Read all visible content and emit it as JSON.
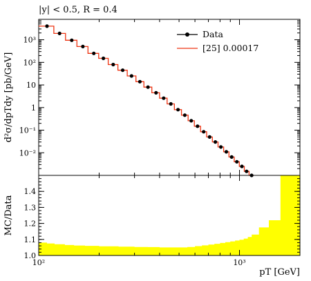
{
  "chart_data": [
    {
      "type": "line",
      "title": "|y| < 0.5, R = 0.4",
      "xlabel": "pT [GeV]",
      "ylabel": "d²σ/dpTdy [pb/GeV]",
      "xscale": "log",
      "yscale": "log",
      "xlim": [
        100,
        2000
      ],
      "ylim": [
        0.001,
        8000
      ],
      "legend": {
        "position": "top-right"
      },
      "x_tick_labels": [
        "10²",
        "10³"
      ],
      "y_tick_labels": [
        "10⁻²",
        "10⁻¹",
        "1",
        "10",
        "10²",
        "10³"
      ],
      "series": [
        {
          "name": "Data",
          "style": "markers",
          "color": "#000000",
          "x": [
            110,
            127,
            146,
            166,
            188,
            210,
            235,
            262,
            290,
            319,
            350,
            384,
            419,
            455,
            494,
            534,
            575,
            618,
            663,
            710,
            758,
            808,
            860,
            914,
            970,
            1028,
            1085,
            1149
          ],
          "y": [
            4000,
            1900,
            950,
            500,
            250,
            150,
            80,
            45,
            25,
            14,
            8,
            4.5,
            2.6,
            1.45,
            0.81,
            0.46,
            0.26,
            0.15,
            0.085,
            0.05,
            0.03,
            0.018,
            0.011,
            0.0065,
            0.004,
            0.0025,
            0.0015,
            0.001
          ]
        },
        {
          "name": "[25] 0.00017",
          "style": "step",
          "color": "#ee3311",
          "bin_edges": [
            100,
            119,
            136,
            155,
            176,
            199,
            222,
            248,
            276,
            305,
            334,
            366,
            400,
            436,
            474,
            514,
            555,
            596,
            640,
            686,
            733,
            782,
            834,
            886,
            941,
            998,
            1057,
            1116,
            1180
          ],
          "values": [
            4000,
            1900,
            950,
            500,
            250,
            150,
            80,
            45,
            25,
            14,
            8,
            4.5,
            2.6,
            1.45,
            0.81,
            0.46,
            0.26,
            0.15,
            0.085,
            0.05,
            0.03,
            0.018,
            0.011,
            0.0065,
            0.004,
            0.0025,
            0.0015,
            0.001
          ]
        }
      ]
    },
    {
      "type": "area",
      "xlabel": "pT [GeV]",
      "ylabel": "MC/Data",
      "xscale": "log",
      "xlim": [
        100,
        2000
      ],
      "ylim": [
        1.0,
        1.5
      ],
      "x_tick_labels": [
        "10²",
        "10³",
        "pT [GeV]"
      ],
      "y_tick_labels": [
        "1.0",
        "1.1",
        "1.2",
        "1.3",
        "1.4"
      ],
      "series": [
        {
          "name": "",
          "color": "#ffff00",
          "bin_edges": [
            100,
            110,
            120,
            135,
            150,
            170,
            200,
            250,
            300,
            350,
            400,
            450,
            500,
            550,
            600,
            650,
            700,
            750,
            800,
            850,
            900,
            950,
            1000,
            1050,
            1100,
            1150,
            1250,
            1400,
            1600,
            2000
          ],
          "values": [
            1.08,
            1.075,
            1.07,
            1.065,
            1.062,
            1.06,
            1.057,
            1.055,
            1.053,
            1.052,
            1.05,
            1.05,
            1.05,
            1.053,
            1.058,
            1.063,
            1.068,
            1.073,
            1.078,
            1.083,
            1.088,
            1.093,
            1.098,
            1.105,
            1.115,
            1.13,
            1.175,
            1.22,
            1.5
          ]
        }
      ]
    }
  ]
}
